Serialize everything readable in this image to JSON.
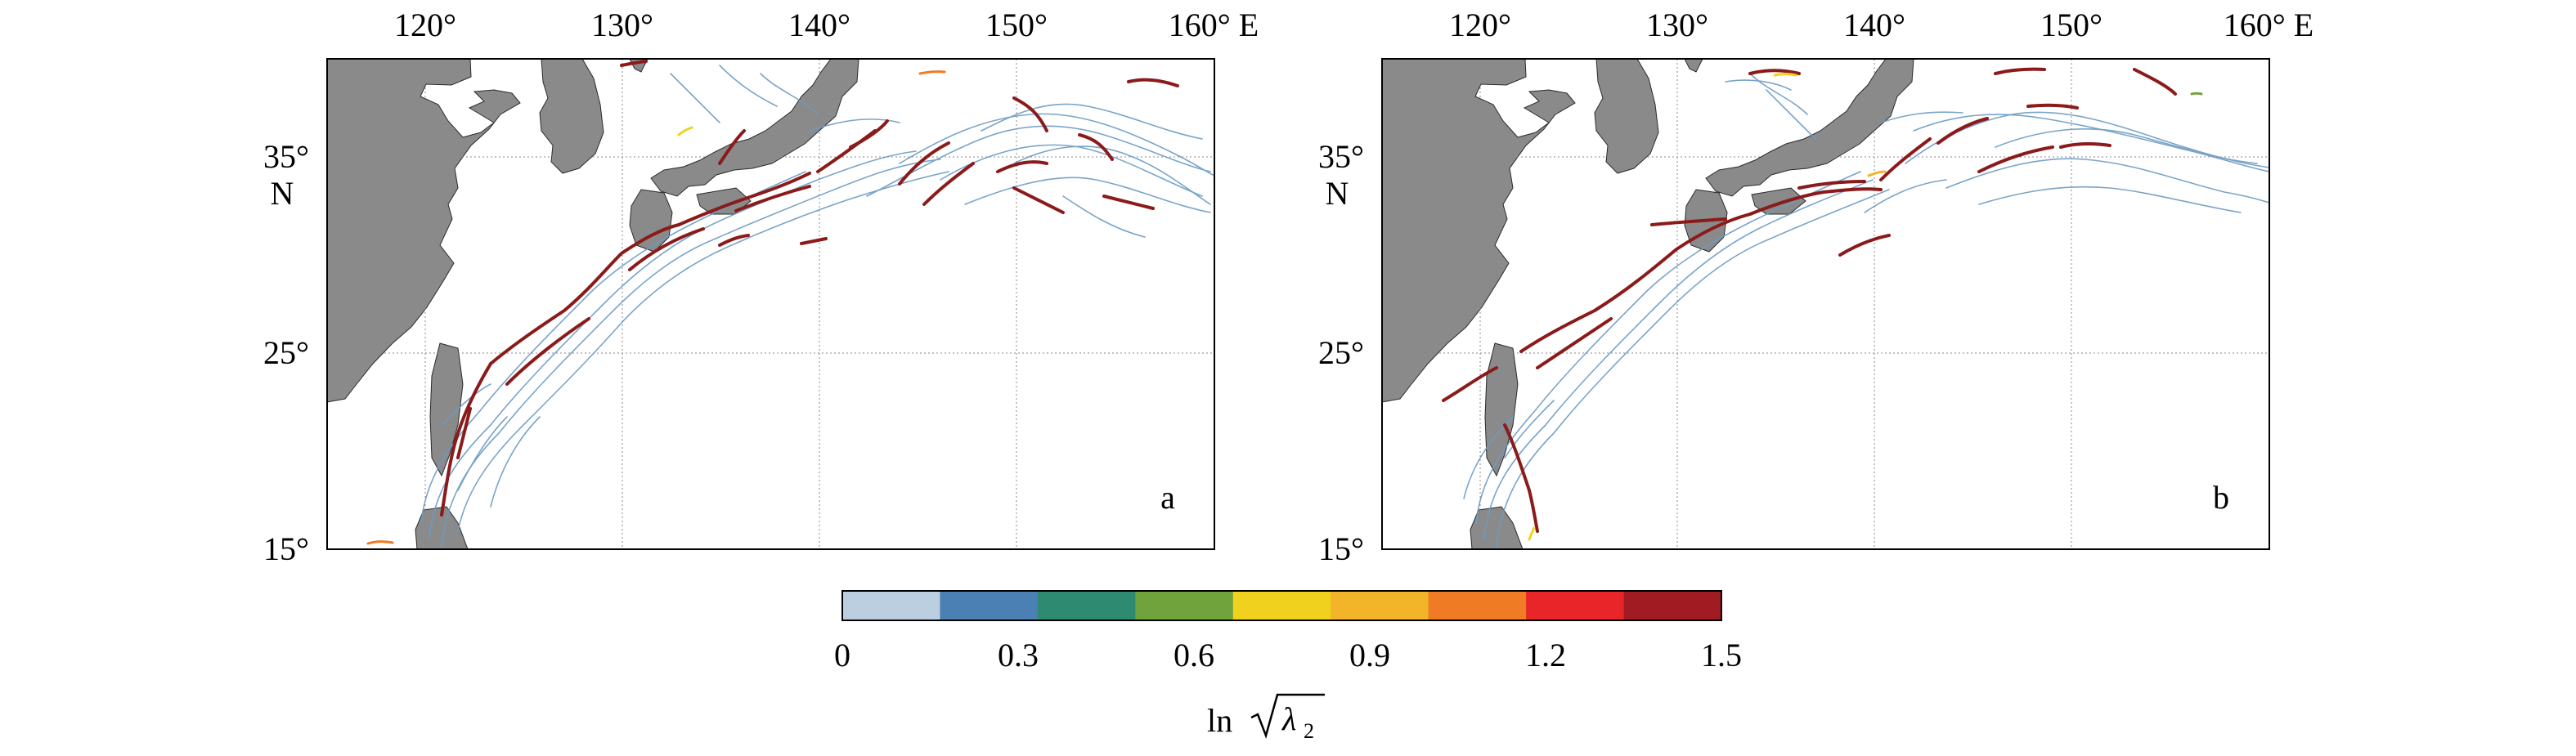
{
  "panels": [
    {
      "id": "a",
      "panel_label": "a",
      "lon_ticks": [
        "120°",
        "130°",
        "140°",
        "150°",
        "160° E"
      ],
      "lat_ticks": [
        "35°",
        "25°",
        "15°"
      ],
      "lat_unit": "N",
      "lon_range": [
        115,
        160
      ],
      "lat_range": [
        15,
        40
      ]
    },
    {
      "id": "b",
      "panel_label": "b",
      "lon_ticks": [
        "120°",
        "130°",
        "140°",
        "150°",
        "160° E"
      ],
      "lat_ticks": [
        "35°",
        "25°",
        "15°"
      ],
      "lat_unit": "N",
      "lon_range": [
        115,
        160
      ],
      "lat_range": [
        15,
        40
      ]
    }
  ],
  "colorbar": {
    "tick_labels": [
      "0",
      "0.3",
      "0.6",
      "0.9",
      "1.2",
      "1.5"
    ],
    "range": [
      0,
      1.5
    ],
    "colors": [
      "#bccfe0",
      "#4a80b4",
      "#2e8b72",
      "#70a33c",
      "#f0d21e",
      "#f2b428",
      "#ef7b24",
      "#e8262a",
      "#a01c22"
    ],
    "label_prefix": "ln",
    "label_symbol": "λ",
    "label_subscript": "2"
  },
  "colors": {
    "land": "#8a8a8a",
    "trajectory_low": "#6b9bc3",
    "trajectory_high": "#8b1a1a",
    "grid": "#888888"
  }
}
